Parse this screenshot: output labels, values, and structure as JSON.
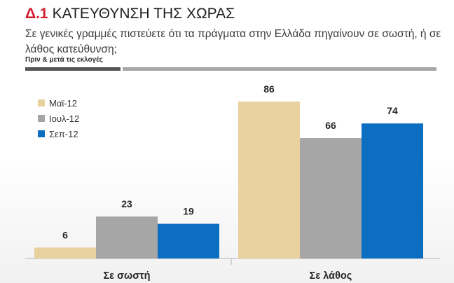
{
  "header": {
    "number": "Δ.1",
    "title": "ΚΑΤΕΥΘΥΝΣΗ ΤΗΣ ΧΩΡΑΣ",
    "subtitle": "Σε γενικές γραμμές πιστεύετε ότι τα πράγματα στην Ελλάδα πηγαίνουν σε σωστή,  ή σε λάθος κατεύθυνση;",
    "note": "Πριν & μετά τις εκλογές"
  },
  "colors": {
    "number": "#d0202e",
    "series": [
      "#e8d19f",
      "#a6a6a6",
      "#0b6ec0"
    ]
  },
  "chart_data": {
    "type": "bar",
    "categories": [
      "Σε σωστή",
      "Σε λάθος"
    ],
    "series": [
      {
        "name": "Μαϊ-12",
        "values": [
          6,
          86
        ]
      },
      {
        "name": "Ιουλ-12",
        "values": [
          23,
          66
        ]
      },
      {
        "name": "Σεπ-12",
        "values": [
          19,
          74
        ]
      }
    ],
    "ylim": [
      0,
      100
    ],
    "data_labels": true,
    "legend_position": "top-left",
    "grid": false
  }
}
